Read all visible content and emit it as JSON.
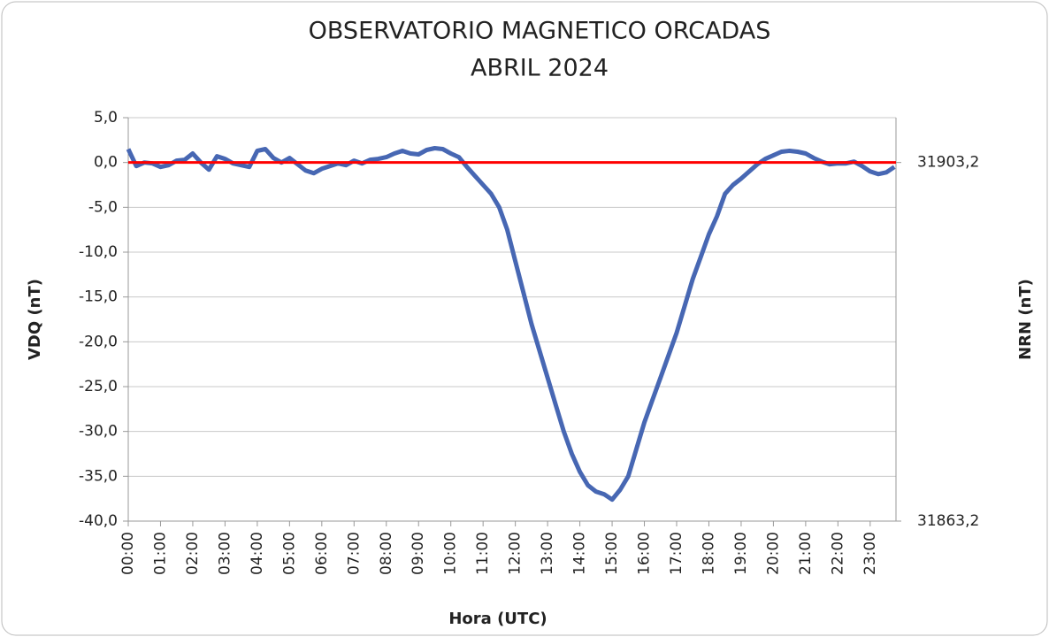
{
  "chart_data": {
    "type": "line",
    "title": "OBSERVATORIO MAGNETICO ORCADAS",
    "subtitle": "ABRIL 2024",
    "x_label": "Hora (UTC)",
    "y_label": "VDQ (nT)",
    "y2_label": "NRN (nT)",
    "xlim": [
      0,
      23.8
    ],
    "xticks": [
      {
        "value": 0,
        "label": "00:00"
      },
      {
        "value": 1,
        "label": "01:00"
      },
      {
        "value": 2,
        "label": "02:00"
      },
      {
        "value": 3,
        "label": "03:00"
      },
      {
        "value": 4,
        "label": "04:00"
      },
      {
        "value": 5,
        "label": "05:00"
      },
      {
        "value": 6,
        "label": "06:00"
      },
      {
        "value": 7,
        "label": "07:00"
      },
      {
        "value": 8,
        "label": "08:00"
      },
      {
        "value": 9,
        "label": "09:00"
      },
      {
        "value": 10,
        "label": "10:00"
      },
      {
        "value": 11,
        "label": "11:00"
      },
      {
        "value": 12,
        "label": "12:00"
      },
      {
        "value": 13,
        "label": "13:00"
      },
      {
        "value": 14,
        "label": "14:00"
      },
      {
        "value": 15,
        "label": "15:00"
      },
      {
        "value": 16,
        "label": "16:00"
      },
      {
        "value": 17,
        "label": "17:00"
      },
      {
        "value": 18,
        "label": "18:00"
      },
      {
        "value": 19,
        "label": "19:00"
      },
      {
        "value": 20,
        "label": "20:00"
      },
      {
        "value": 21,
        "label": "21:00"
      },
      {
        "value": 22,
        "label": "22:00"
      },
      {
        "value": 23,
        "label": "23:00"
      }
    ],
    "ylim": [
      -40,
      5
    ],
    "yticks": [
      {
        "value": 5,
        "label": "5,0"
      },
      {
        "value": 0,
        "label": "0,0"
      },
      {
        "value": -5,
        "label": "-5,0"
      },
      {
        "value": -10,
        "label": "-10,0"
      },
      {
        "value": -15,
        "label": "-15,0"
      },
      {
        "value": -20,
        "label": "-20,0"
      },
      {
        "value": -25,
        "label": "-25,0"
      },
      {
        "value": -30,
        "label": "-30,0"
      },
      {
        "value": -35,
        "label": "-35,0"
      },
      {
        "value": -40,
        "label": "-40,0"
      }
    ],
    "y2lim": [
      31863.2,
      31908.2
    ],
    "y2ticks": [
      {
        "value": 31903.2,
        "label": "31903,2"
      },
      {
        "value": 31863.2,
        "label": "31863,2"
      }
    ],
    "grid": true,
    "reference_line": {
      "value": 0,
      "color": "#ff0000"
    },
    "x": [
      0,
      0.25,
      0.5,
      0.75,
      1,
      1.25,
      1.5,
      1.75,
      2,
      2.25,
      2.5,
      2.75,
      3,
      3.25,
      3.5,
      3.75,
      4,
      4.25,
      4.5,
      4.75,
      5,
      5.25,
      5.5,
      5.75,
      6,
      6.25,
      6.5,
      6.75,
      7,
      7.25,
      7.5,
      7.75,
      8,
      8.25,
      8.5,
      8.75,
      9,
      9.25,
      9.5,
      9.75,
      10,
      10.25,
      10.5,
      10.75,
      11,
      11.25,
      11.5,
      11.75,
      12,
      12.25,
      12.5,
      12.75,
      13,
      13.25,
      13.5,
      13.75,
      14,
      14.25,
      14.5,
      14.75,
      15,
      15.25,
      15.5,
      15.75,
      16,
      16.25,
      16.5,
      16.75,
      17,
      17.25,
      17.5,
      17.75,
      18,
      18.25,
      18.5,
      18.75,
      19,
      19.25,
      19.5,
      19.75,
      20,
      20.25,
      20.5,
      20.75,
      21,
      21.25,
      21.5,
      21.75,
      22,
      22.25,
      22.5,
      22.75,
      23,
      23.25,
      23.5,
      23.75
    ],
    "series": [
      {
        "color": "#4767b3",
        "values": [
          1.5,
          -0.4,
          0.0,
          -0.1,
          -0.5,
          -0.3,
          0.2,
          0.3,
          1.0,
          0.0,
          -0.8,
          0.7,
          0.4,
          -0.1,
          -0.3,
          -0.5,
          1.3,
          1.5,
          0.5,
          0.0,
          0.5,
          -0.2,
          -0.9,
          -1.2,
          -0.7,
          -0.4,
          -0.1,
          -0.3,
          0.2,
          -0.1,
          0.3,
          0.4,
          0.6,
          1.0,
          1.3,
          1.0,
          0.9,
          1.4,
          1.6,
          1.5,
          1.0,
          0.6,
          -0.5,
          -1.5,
          -2.5,
          -3.5,
          -5.0,
          -7.5,
          -11.0,
          -14.5,
          -18.0,
          -21.0,
          -24.0,
          -27.0,
          -30.0,
          -32.5,
          -34.5,
          -36.0,
          -36.7,
          -37.0,
          -37.6,
          -36.5,
          -35.0,
          -32.0,
          -29.0,
          -26.5,
          -24.0,
          -21.5,
          -19.0,
          -16.0,
          -13.0,
          -10.5,
          -8.0,
          -6.0,
          -3.5,
          -2.5,
          -1.8,
          -1.0,
          -0.2,
          0.4,
          0.8,
          1.2,
          1.3,
          1.2,
          1.0,
          0.5,
          0.1,
          -0.2,
          -0.1,
          -0.1,
          0.1,
          -0.4,
          -1.0,
          -1.3,
          -1.1,
          -0.5
        ]
      }
    ]
  }
}
